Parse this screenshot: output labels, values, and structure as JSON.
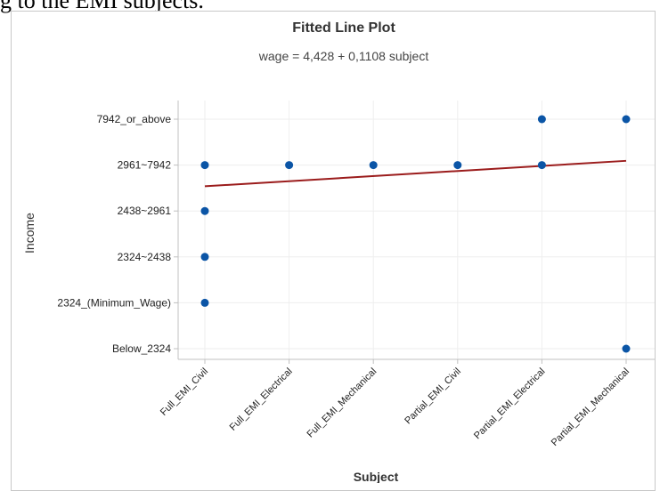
{
  "page_caption": "g to the EMI subjects.",
  "chart_data": {
    "type": "scatter",
    "title": "Fitted Line Plot",
    "subtitle": "wage = 4,428 + 0,1108 subject",
    "xlabel": "Subject",
    "ylabel": "Income",
    "categories": [
      "Full_EMI_Civil",
      "Full_EMI_Electrical",
      "Full_EMI_Mechanical",
      "Partial_EMI_Civil",
      "Partial_EMI_Electrical",
      "Partial_EMI_Mechanical"
    ],
    "y_categories": [
      "Below_2324",
      "2324_(Minimum_Wage)",
      "2324~2438",
      "2438~2961",
      "2961~7942",
      "7942_or_above"
    ],
    "points": [
      {
        "x": "Full_EMI_Civil",
        "y": "2961~7942"
      },
      {
        "x": "Full_EMI_Civil",
        "y": "2438~2961"
      },
      {
        "x": "Full_EMI_Civil",
        "y": "2324~2438"
      },
      {
        "x": "Full_EMI_Civil",
        "y": "2324_(Minimum_Wage)"
      },
      {
        "x": "Full_EMI_Electrical",
        "y": "2961~7942"
      },
      {
        "x": "Full_EMI_Mechanical",
        "y": "2961~7942"
      },
      {
        "x": "Partial_EMI_Civil",
        "y": "2961~7942"
      },
      {
        "x": "Partial_EMI_Electrical",
        "y": "7942_or_above"
      },
      {
        "x": "Partial_EMI_Electrical",
        "y": "2961~7942"
      },
      {
        "x": "Partial_EMI_Mechanical",
        "y": "7942_or_above"
      },
      {
        "x": "Partial_EMI_Mechanical",
        "y": "Below_2324"
      }
    ],
    "fit": {
      "intercept": 4.428,
      "slope": 0.1108
    },
    "colors": {
      "points": "#0b55a6",
      "fit_line": "#9b1c1c",
      "grid": "#eeeeee",
      "axis": "#c0c0c0"
    },
    "grid": true
  }
}
